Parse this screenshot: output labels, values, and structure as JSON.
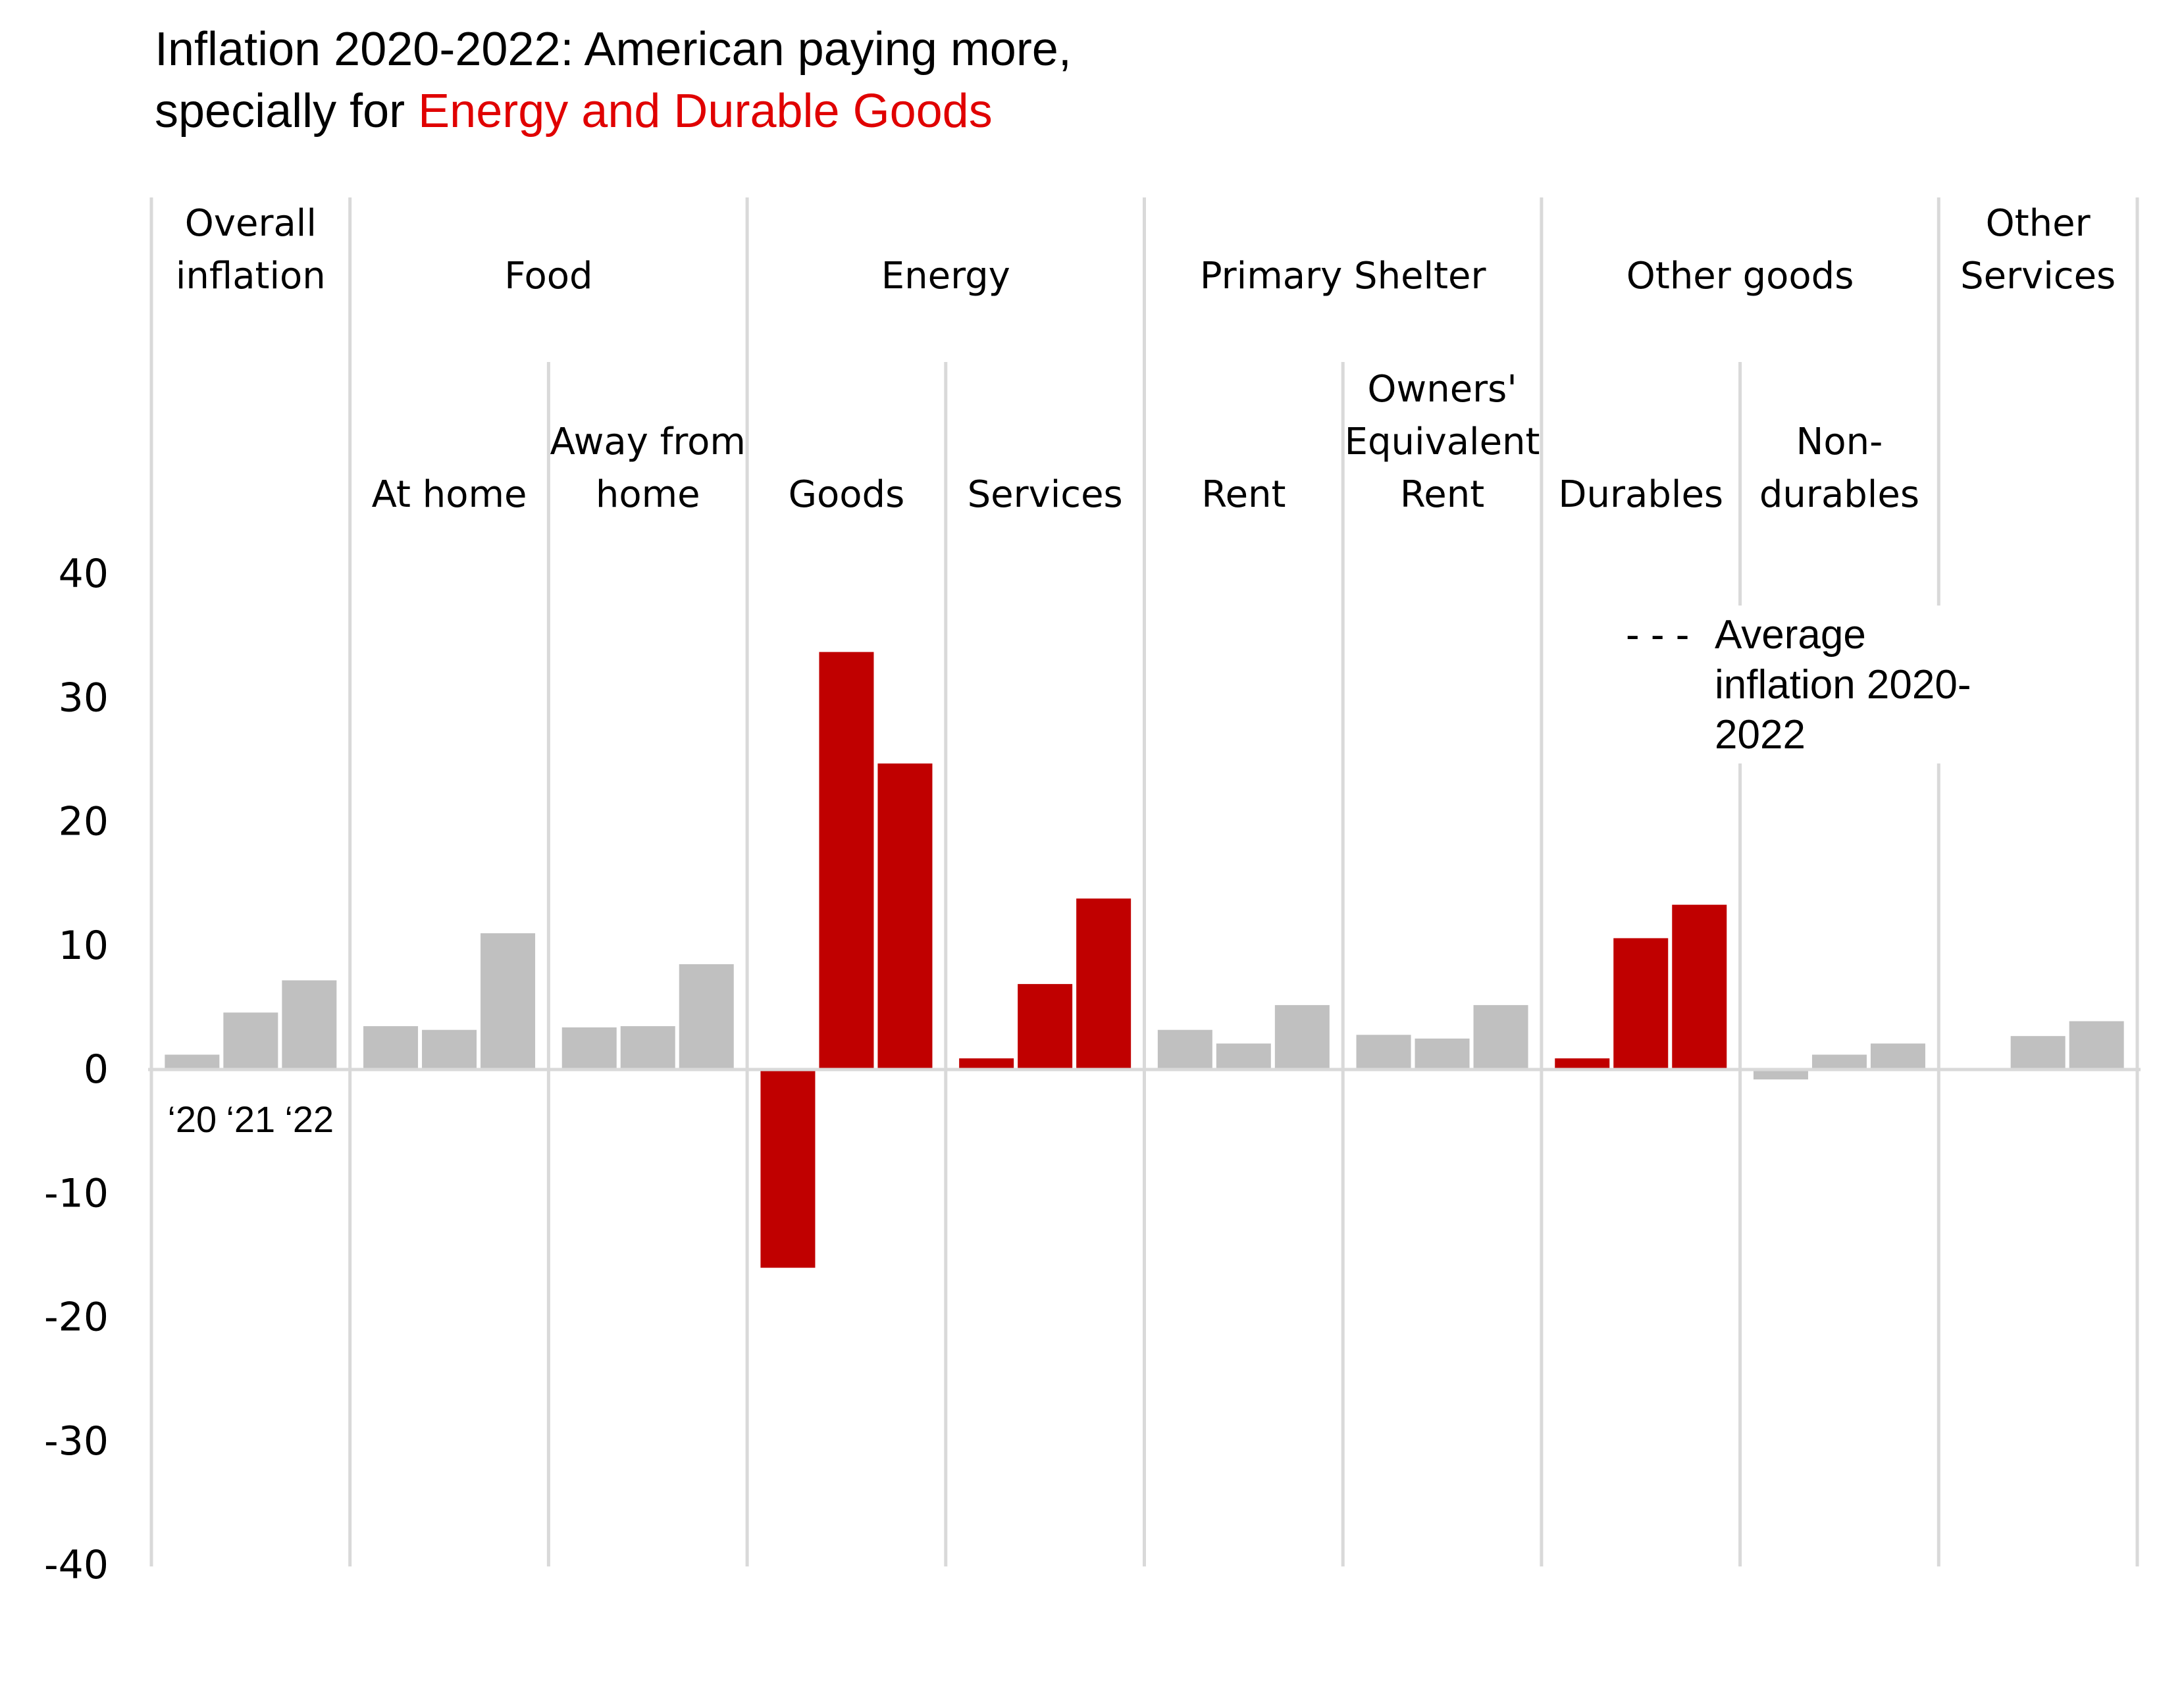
{
  "title": {
    "line1": "Inflation 2020-2022: American paying more,",
    "line2_prefix": "specially for ",
    "line2_highlight": "Energy and Durable Goods",
    "highlight_color": "#e00000"
  },
  "chart_data": {
    "type": "bar",
    "ylim": [
      -40,
      40
    ],
    "yticks": [
      40,
      30,
      20,
      10,
      0,
      -10,
      -20,
      -30,
      -40
    ],
    "years": [
      "'20",
      "'21",
      "'22"
    ],
    "year_labels_display": [
      "‘20",
      "‘21",
      "‘22"
    ],
    "colors": {
      "highlight": "#c00000",
      "normal": "#c0c0c0",
      "grid": "#d9d9d9",
      "axis": "#d9d9d9"
    },
    "groups": [
      {
        "name": [
          "Overall",
          "inflation"
        ],
        "span": [
          0,
          1
        ]
      },
      {
        "name": [
          "Food"
        ],
        "span": [
          1,
          3
        ]
      },
      {
        "name": [
          "Energy"
        ],
        "span": [
          3,
          5
        ]
      },
      {
        "name": [
          "Primary Shelter"
        ],
        "span": [
          5,
          7
        ]
      },
      {
        "name": [
          "Other goods"
        ],
        "span": [
          7,
          9
        ]
      },
      {
        "name": [
          "Other",
          "Services"
        ],
        "span": [
          9,
          10
        ]
      }
    ],
    "categories": [
      {
        "label": [],
        "values": [
          1.2,
          4.6,
          7.2
        ],
        "highlight": false
      },
      {
        "label": [
          "At home"
        ],
        "values": [
          3.5,
          3.2,
          11.0
        ],
        "highlight": false
      },
      {
        "label": [
          "Away from",
          "home"
        ],
        "values": [
          3.4,
          3.5,
          8.5
        ],
        "highlight": false
      },
      {
        "label": [
          "Goods"
        ],
        "values": [
          -16.0,
          33.7,
          24.7
        ],
        "highlight": true
      },
      {
        "label": [
          "Services"
        ],
        "values": [
          0.9,
          6.9,
          13.8
        ],
        "highlight": true
      },
      {
        "label": [
          "Rent"
        ],
        "values": [
          3.2,
          2.1,
          5.2
        ],
        "highlight": false
      },
      {
        "label": [
          "Owners'",
          "Equivalent",
          "Rent"
        ],
        "values": [
          2.8,
          2.5,
          5.2
        ],
        "highlight": false
      },
      {
        "label": [
          "Durables"
        ],
        "values": [
          0.9,
          10.6,
          13.3
        ],
        "highlight": true
      },
      {
        "label": [
          "Non-",
          "durables"
        ],
        "values": [
          -0.8,
          1.2,
          2.1
        ],
        "highlight": false
      },
      {
        "label": [],
        "values": [
          0.0,
          2.7,
          3.9
        ],
        "highlight": false
      }
    ],
    "legend": {
      "symbol": "- - -",
      "lines": [
        "Average",
        "inflation 2020-",
        "2022"
      ]
    }
  }
}
